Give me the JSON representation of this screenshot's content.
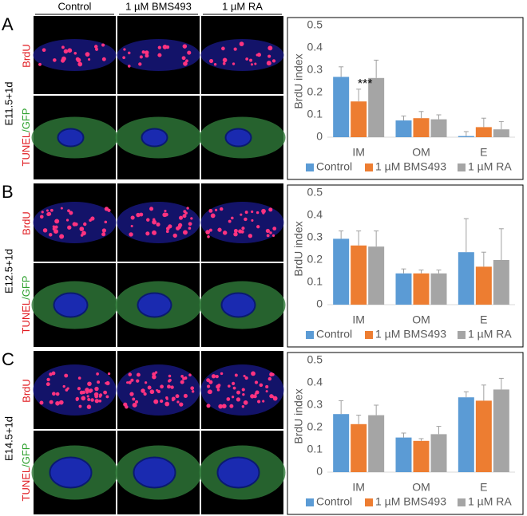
{
  "column_headers": [
    "Control",
    "1 µM BMS493",
    "1 µM RA"
  ],
  "row_labels": {
    "brdu": "BrdU",
    "tunel": "TUNEL",
    "gfp": "/GFP"
  },
  "panels": [
    {
      "letter": "A",
      "stage": "E11.5+1d"
    },
    {
      "letter": "B",
      "stage": "E12.5+1d"
    },
    {
      "letter": "C",
      "stage": "E14.5+1d"
    }
  ],
  "chart_data": [
    {
      "type": "bar",
      "ylabel": "BrdU index",
      "categories": [
        "IM",
        "OM",
        "E"
      ],
      "ylim": [
        0,
        0.5
      ],
      "yticks": [
        0,
        0.1,
        0.2,
        0.3,
        0.4,
        0.5
      ],
      "annotation": "***",
      "series": [
        {
          "name": "Control",
          "color": "#5b9bd5",
          "values": [
            0.27,
            0.075,
            0.005
          ],
          "errors": [
            0.045,
            0.02,
            0.02
          ]
        },
        {
          "name": "1 µM BMS493",
          "color": "#ed7d31",
          "values": [
            0.16,
            0.085,
            0.045
          ],
          "errors": [
            0.055,
            0.03,
            0.04
          ]
        },
        {
          "name": "1 µM RA",
          "color": "#a5a5a5",
          "values": [
            0.265,
            0.08,
            0.035
          ],
          "errors": [
            0.08,
            0.02,
            0.035
          ]
        }
      ]
    },
    {
      "type": "bar",
      "ylabel": "BrdU index",
      "categories": [
        "IM",
        "OM",
        "E"
      ],
      "ylim": [
        0,
        0.5
      ],
      "yticks": [
        0,
        0.1,
        0.2,
        0.3,
        0.4,
        0.5
      ],
      "series": [
        {
          "name": "Control",
          "color": "#5b9bd5",
          "values": [
            0.295,
            0.14,
            0.235
          ],
          "errors": [
            0.035,
            0.02,
            0.15
          ]
        },
        {
          "name": "1 µM BMS493",
          "color": "#ed7d31",
          "values": [
            0.265,
            0.14,
            0.17
          ],
          "errors": [
            0.065,
            0.015,
            0.065
          ]
        },
        {
          "name": "1 µM RA",
          "color": "#a5a5a5",
          "values": [
            0.26,
            0.14,
            0.2
          ],
          "errors": [
            0.07,
            0.015,
            0.14
          ]
        }
      ]
    },
    {
      "type": "bar",
      "ylabel": "BrdU index",
      "categories": [
        "IM",
        "OM",
        "E"
      ],
      "ylim": [
        0,
        0.5
      ],
      "yticks": [
        0,
        0.1,
        0.2,
        0.3,
        0.4,
        0.5
      ],
      "series": [
        {
          "name": "Control",
          "color": "#5b9bd5",
          "values": [
            0.26,
            0.155,
            0.335
          ],
          "errors": [
            0.06,
            0.02,
            0.025
          ]
        },
        {
          "name": "1 µM BMS493",
          "color": "#ed7d31",
          "values": [
            0.215,
            0.14,
            0.32
          ],
          "errors": [
            0.04,
            0.01,
            0.07
          ]
        },
        {
          "name": "1 µM RA",
          "color": "#a5a5a5",
          "values": [
            0.255,
            0.17,
            0.37
          ],
          "errors": [
            0.045,
            0.035,
            0.05
          ]
        }
      ]
    }
  ]
}
